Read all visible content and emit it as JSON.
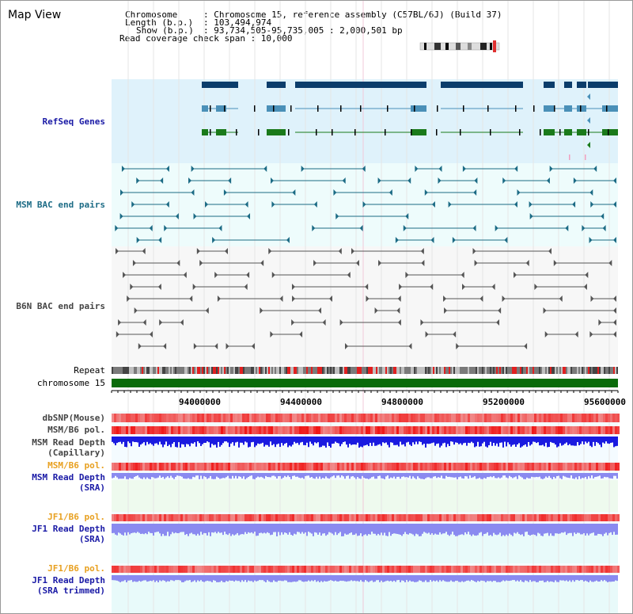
{
  "title": "Map View",
  "header": {
    "chromosome_key": "Chromosome",
    "chromosome_val": ": Chromosome 15, reference assembly (C57BL/6J) (Build 37)",
    "length_key": "Length (b.p.)",
    "length_val": ": 103,494,974",
    "show_key": "Show (b.p.)",
    "show_val": ": 93,734,505-95,735,005 : 2,000,501 bp",
    "coverage": "Read coverage check span : 10,000"
  },
  "labels": {
    "refseq": "RefSeq Genes",
    "msm_bac": "MSM BAC end pairs",
    "b6n_bac": "B6N BAC end pairs",
    "repeat": "Repeat",
    "chromosome": "chromosome 15",
    "dbsnp": "dbSNP(Mouse)",
    "msm_b6_pol_1": "MSM/B6 pol.",
    "msm_depth_cap_1": "MSM Read Depth",
    "msm_depth_cap_2": "(Capillary)",
    "msm_b6_pol_2": "MSM/B6 pol.",
    "msm_depth_sra_1": "MSM Read Depth",
    "msm_depth_sra_2": "(SRA)",
    "jf1_pol_1": "JF1/B6 pol.",
    "jf1_depth_1a": "JF1 Read Depth",
    "jf1_depth_1b": "(SRA)",
    "jf1_pol_2": "JF1/B6 pol.",
    "jf1_depth_2a": "JF1 Read Depth",
    "jf1_depth_2b": "(SRA trimmed)"
  },
  "axis_ticks": [
    "94000000",
    "94400000",
    "94800000",
    "95200000",
    "95600000"
  ],
  "colors": {
    "refseq_bg": "#dff2fb",
    "msm_bg": "#eefcfc",
    "b6n_bg": "#f7f7f7",
    "gene_dark": "#0b3d6b",
    "gene_mid": "#4a90b8",
    "gene_green": "#1a7a1a",
    "msm_pair": "#1c6b85",
    "b6n_pair": "#555555",
    "chrom_bar": "#0a6b0a",
    "snp_red": "#e83030",
    "depth_blue": "#1a1ae0",
    "depth_light": "#8a8af0"
  }
}
